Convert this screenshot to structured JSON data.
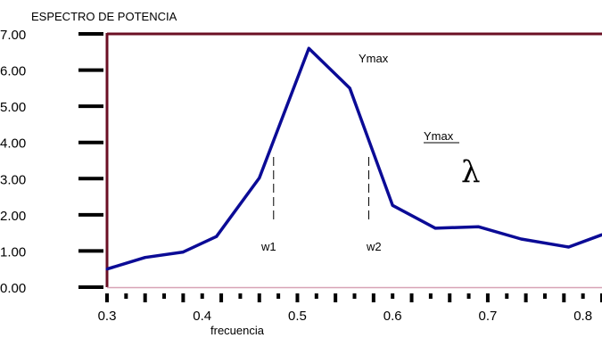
{
  "chart_data": {
    "type": "line",
    "title": "ESPECTRO DE POTENCIA",
    "xlabel": "frecuencia",
    "ylabel": "",
    "xlim": [
      0.3,
      0.82
    ],
    "ylim": [
      0,
      7
    ],
    "x_ticks": [
      "0.3",
      "0.4",
      "0.5",
      "0.6",
      "0.7",
      "0.8"
    ],
    "x_tick_values": [
      0.3,
      0.4,
      0.5,
      0.6,
      0.7,
      0.8
    ],
    "y_ticks": [
      "0.00",
      "1.00",
      "2.00",
      "3.00",
      "4.00",
      "5.00",
      "6.00",
      "7.00"
    ],
    "y_tick_values": [
      0,
      1,
      2,
      3,
      4,
      5,
      6,
      7
    ],
    "series": [
      {
        "x": [
          0.3,
          0.34,
          0.38,
          0.415,
          0.46,
          0.512,
          0.555,
          0.6,
          0.645,
          0.69,
          0.735,
          0.785,
          0.82
        ],
        "values": [
          0.5,
          0.82,
          0.97,
          1.4,
          3.02,
          6.6,
          5.5,
          2.26,
          1.63,
          1.67,
          1.33,
          1.11,
          1.45
        ]
      }
    ],
    "annotations": {
      "peak_label": "Ymax",
      "ratio_numerator": "Ymax",
      "ratio_denominator": "λ",
      "w1": {
        "label": "w1",
        "x": 0.475,
        "y_bottom": 1.8,
        "y_top": 3.6
      },
      "w2": {
        "label": "w2",
        "x": 0.575,
        "y_bottom": 1.8,
        "y_top": 3.6
      }
    },
    "colors": {
      "line": "#0b0b96",
      "frame": "#6b0f24",
      "baseline": "#d7a3b6",
      "ticks": "#000000"
    },
    "grid": false,
    "legend": "none"
  }
}
